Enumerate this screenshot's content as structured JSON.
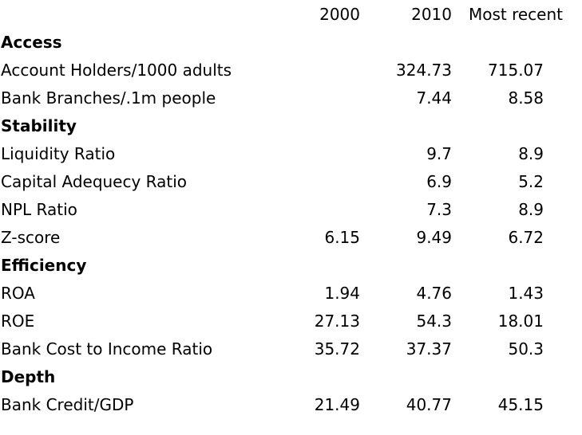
{
  "header": {
    "col_2000": "2000",
    "col_2010": "2010",
    "col_recent": "Most recent"
  },
  "rows": [
    {
      "type": "section",
      "label": "Access"
    },
    {
      "type": "data",
      "label": "Account Holders/1000 adults",
      "v2000": "",
      "v2010": "324.73",
      "recent": "715.07"
    },
    {
      "type": "data",
      "label": "Bank Branches/.1m people",
      "v2000": "",
      "v2010": "7.44",
      "recent": "8.58"
    },
    {
      "type": "section",
      "label": "Stability"
    },
    {
      "type": "data",
      "label": "Liquidity Ratio",
      "v2000": "",
      "v2010": "9.7",
      "recent": "8.9"
    },
    {
      "type": "data",
      "label": "Capital Adequecy Ratio",
      "v2000": "",
      "v2010": "6.9",
      "recent": "5.2"
    },
    {
      "type": "data",
      "label": "NPL Ratio",
      "v2000": "",
      "v2010": "7.3",
      "recent": "8.9"
    },
    {
      "type": "data",
      "label": "Z-score",
      "v2000": "6.15",
      "v2010": "9.49",
      "recent": "6.72"
    },
    {
      "type": "section",
      "label": "Efficiency"
    },
    {
      "type": "data",
      "label": "ROA",
      "v2000": "1.94",
      "v2010": "4.76",
      "recent": "1.43"
    },
    {
      "type": "data",
      "label": "ROE",
      "v2000": "27.13",
      "v2010": "54.3",
      "recent": "18.01"
    },
    {
      "type": "data",
      "label": "Bank Cost to Income Ratio",
      "v2000": "35.72",
      "v2010": "37.37",
      "recent": "50.3"
    },
    {
      "type": "section",
      "label": "Depth"
    },
    {
      "type": "data",
      "label": "Bank Credit/GDP",
      "v2000": "21.49",
      "v2010": "40.77",
      "recent": "45.15"
    }
  ]
}
